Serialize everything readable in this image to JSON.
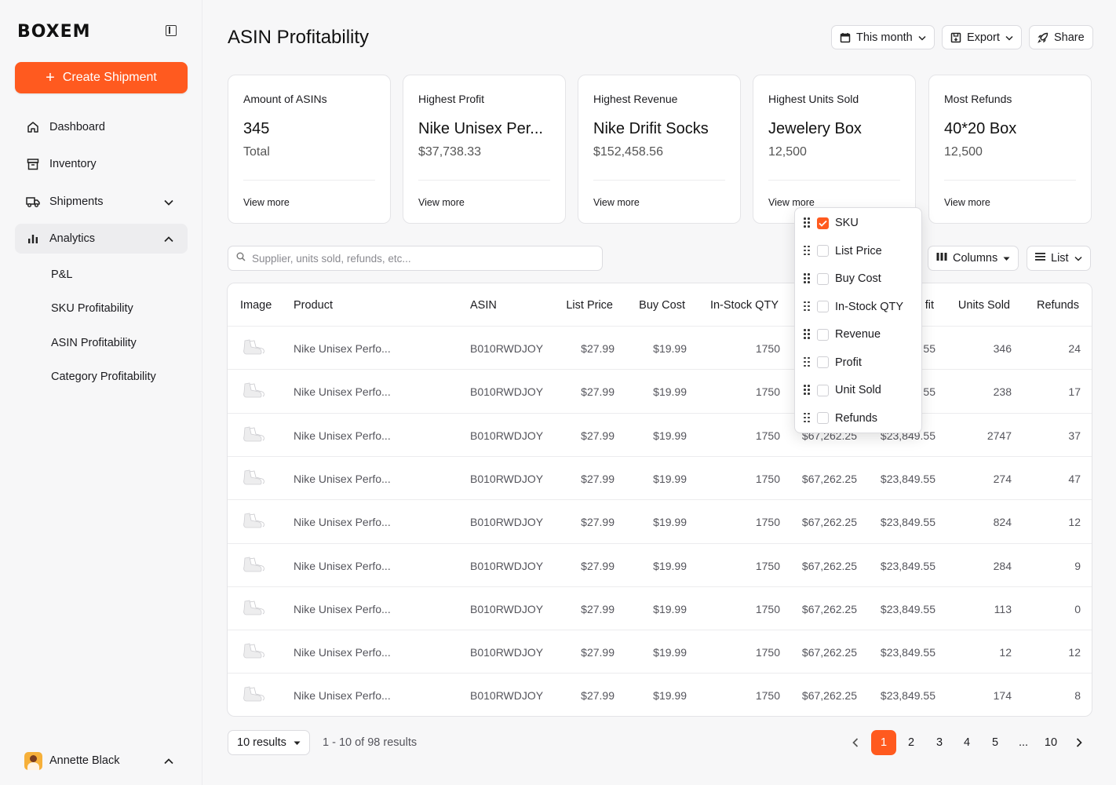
{
  "brand": {
    "logo": "BOXEM"
  },
  "sidebar": {
    "create_label": "Create Shipment",
    "items": [
      {
        "label": "Dashboard"
      },
      {
        "label": "Inventory"
      },
      {
        "label": "Shipments"
      },
      {
        "label": "Analytics"
      }
    ],
    "sub_items": [
      {
        "label": "P&L"
      },
      {
        "label": "SKU Profitability"
      },
      {
        "label": "ASIN Profitability"
      },
      {
        "label": "Category Profitability"
      }
    ],
    "user_name": "Annette Black"
  },
  "header": {
    "title": "ASIN Profitability",
    "period_label": "This month",
    "export_label": "Export",
    "share_label": "Share"
  },
  "cards": [
    {
      "label": "Amount of ASINs",
      "value": "345",
      "sub": "Total",
      "more": "View more"
    },
    {
      "label": "Highest Profit",
      "value": "Nike Unisex Per...",
      "sub": "$37,738.33",
      "more": "View more"
    },
    {
      "label": "Highest Revenue",
      "value": "Nike Drifit Socks",
      "sub": "$152,458.56",
      "more": "View more"
    },
    {
      "label": "Highest Units Sold",
      "value": "Jewelery Box",
      "sub": "12,500",
      "more": "View more"
    },
    {
      "label": "Most Refunds",
      "value": "40*20 Box",
      "sub": "12,500",
      "more": "View more"
    }
  ],
  "search": {
    "placeholder": "Supplier, units sold, refunds, etc..."
  },
  "controls": {
    "columns_label": "Columns",
    "view_label": "List"
  },
  "table": {
    "headers": {
      "image": "Image",
      "product": "Product",
      "asin": "ASIN",
      "list_price": "List Price",
      "buy_cost": "Buy Cost",
      "in_stock": "In-Stock QTY",
      "profit_fragment": "fit",
      "units_sold": "Units Sold",
      "refunds": "Refunds"
    },
    "rows": [
      {
        "product": "Nike Unisex Perfo...",
        "asin": "B010RWDJOY",
        "list_price": "$27.99",
        "buy_cost": "$19.99",
        "in_stock": "1750",
        "revenue": "",
        "profit": "55",
        "units_sold": "346",
        "refunds": "24"
      },
      {
        "product": "Nike Unisex Perfo...",
        "asin": "B010RWDJOY",
        "list_price": "$27.99",
        "buy_cost": "$19.99",
        "in_stock": "1750",
        "revenue": "",
        "profit": "55",
        "units_sold": "238",
        "refunds": "17"
      },
      {
        "product": "Nike Unisex Perfo...",
        "asin": "B010RWDJOY",
        "list_price": "$27.99",
        "buy_cost": "$19.99",
        "in_stock": "1750",
        "revenue": "$67,262.25",
        "profit": "$23,849.55",
        "units_sold": "2747",
        "refunds": "37"
      },
      {
        "product": "Nike Unisex Perfo...",
        "asin": "B010RWDJOY",
        "list_price": "$27.99",
        "buy_cost": "$19.99",
        "in_stock": "1750",
        "revenue": "$67,262.25",
        "profit": "$23,849.55",
        "units_sold": "274",
        "refunds": "47"
      },
      {
        "product": "Nike Unisex Perfo...",
        "asin": "B010RWDJOY",
        "list_price": "$27.99",
        "buy_cost": "$19.99",
        "in_stock": "1750",
        "revenue": "$67,262.25",
        "profit": "$23,849.55",
        "units_sold": "824",
        "refunds": "12"
      },
      {
        "product": "Nike Unisex Perfo...",
        "asin": "B010RWDJOY",
        "list_price": "$27.99",
        "buy_cost": "$19.99",
        "in_stock": "1750",
        "revenue": "$67,262.25",
        "profit": "$23,849.55",
        "units_sold": "284",
        "refunds": "9"
      },
      {
        "product": "Nike Unisex Perfo...",
        "asin": "B010RWDJOY",
        "list_price": "$27.99",
        "buy_cost": "$19.99",
        "in_stock": "1750",
        "revenue": "$67,262.25",
        "profit": "$23,849.55",
        "units_sold": "113",
        "refunds": "0"
      },
      {
        "product": "Nike Unisex Perfo...",
        "asin": "B010RWDJOY",
        "list_price": "$27.99",
        "buy_cost": "$19.99",
        "in_stock": "1750",
        "revenue": "$67,262.25",
        "profit": "$23,849.55",
        "units_sold": "12",
        "refunds": "12"
      },
      {
        "product": "Nike Unisex Perfo...",
        "asin": "B010RWDJOY",
        "list_price": "$27.99",
        "buy_cost": "$19.99",
        "in_stock": "1750",
        "revenue": "$67,262.25",
        "profit": "$23,849.55",
        "units_sold": "174",
        "refunds": "8"
      }
    ]
  },
  "column_menu": [
    {
      "label": "SKU",
      "checked": true
    },
    {
      "label": "List Price",
      "checked": false
    },
    {
      "label": "Buy Cost",
      "checked": false
    },
    {
      "label": "In-Stock QTY",
      "checked": false
    },
    {
      "label": "Revenue",
      "checked": false
    },
    {
      "label": "Profit",
      "checked": false
    },
    {
      "label": "Unit Sold",
      "checked": false
    },
    {
      "label": "Refunds",
      "checked": false
    }
  ],
  "footer": {
    "per_page_label": "10 results",
    "range_text": "1 - 10 of 98 results",
    "pages": [
      "1",
      "2",
      "3",
      "4",
      "5",
      "...",
      "10"
    ],
    "current_page": "1"
  },
  "colors": {
    "accent": "#ff5a1f"
  }
}
